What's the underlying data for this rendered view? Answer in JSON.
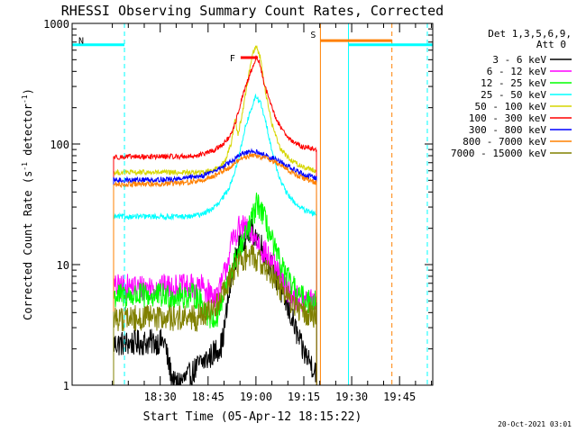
{
  "chart_data": {
    "type": "line",
    "title": "RHESSI Observing Summary Count Rates, Corrected",
    "xlabel": "Start Time (05-Apr-12 18:15:22)",
    "ylabel_main": "Corrected Count Rate (s",
    "ylabel_sup1": "-1",
    "ylabel_mid": " detector",
    "ylabel_sup2": "-1",
    "ylabel_end": ")",
    "footer": "20-Oct-2021 03:01",
    "y_scale": "log",
    "ylim": [
      1,
      1000
    ],
    "y_ticks": [
      {
        "value": 1,
        "label": "1"
      },
      {
        "value": 10,
        "label": "10"
      },
      {
        "value": 100,
        "label": "100"
      },
      {
        "value": 1000,
        "label": "1000"
      }
    ],
    "x_unit": "minutes after 18:15:22",
    "xlim": [
      -13,
      100
    ],
    "x_ticks": [
      {
        "value": 14.6,
        "label": "18:30"
      },
      {
        "value": 29.6,
        "label": "18:45"
      },
      {
        "value": 44.6,
        "label": "19:00"
      },
      {
        "value": 59.6,
        "label": "19:15"
      },
      {
        "value": 74.6,
        "label": "19:30"
      },
      {
        "value": 89.6,
        "label": "19:45"
      }
    ],
    "legend": {
      "placement": "right",
      "header1": "Det 1,3,5,6,9,",
      "header2": "Att 0"
    },
    "data_start": 0,
    "data_end": 63.6,
    "series": [
      {
        "name": "3 - 6 keV",
        "color": "#000000",
        "points": [
          [
            0,
            2.2
          ],
          [
            16,
            2.3
          ],
          [
            17,
            1.6
          ],
          [
            19,
            1
          ],
          [
            24,
            1.2
          ],
          [
            27,
            1.5
          ],
          [
            30,
            1.7
          ],
          [
            34,
            2.2
          ],
          [
            37,
            8
          ],
          [
            39,
            14
          ],
          [
            41,
            17
          ],
          [
            43,
            19
          ],
          [
            45,
            17
          ],
          [
            47,
            13
          ],
          [
            50,
            9
          ],
          [
            53,
            5.5
          ],
          [
            56,
            3.5
          ],
          [
            59,
            2
          ],
          [
            62,
            1.5
          ],
          [
            63.6,
            1.3
          ]
        ]
      },
      {
        "name": "6 - 12 keV",
        "color": "#ff00ff",
        "points": [
          [
            0,
            6.5
          ],
          [
            28,
            6.5
          ],
          [
            31,
            5.5
          ],
          [
            33,
            5.8
          ],
          [
            35,
            9
          ],
          [
            37,
            15
          ],
          [
            39,
            20
          ],
          [
            41,
            20
          ],
          [
            44,
            17
          ],
          [
            47,
            13
          ],
          [
            50,
            10
          ],
          [
            53,
            7
          ],
          [
            56,
            5.5
          ],
          [
            59,
            5
          ],
          [
            63.6,
            5
          ]
        ]
      },
      {
        "name": "12 - 25 keV",
        "color": "#00ff00",
        "points": [
          [
            0,
            5.5
          ],
          [
            26,
            5.5
          ],
          [
            29,
            4
          ],
          [
            32,
            3.5
          ],
          [
            34,
            5
          ],
          [
            37,
            9
          ],
          [
            40,
            14
          ],
          [
            43,
            22
          ],
          [
            45,
            32
          ],
          [
            46,
            30
          ],
          [
            48,
            21
          ],
          [
            51,
            12
          ],
          [
            54,
            8
          ],
          [
            57,
            6
          ],
          [
            60,
            5
          ],
          [
            63.6,
            5
          ]
        ]
      },
      {
        "name": "25 - 50 keV",
        "color": "#00ffff",
        "points": [
          [
            0,
            25
          ],
          [
            24,
            25
          ],
          [
            27,
            26
          ],
          [
            30,
            28
          ],
          [
            33,
            32
          ],
          [
            36,
            42
          ],
          [
            39,
            72
          ],
          [
            41,
            130
          ],
          [
            43,
            190
          ],
          [
            44.6,
            250
          ],
          [
            46,
            220
          ],
          [
            48,
            140
          ],
          [
            50,
            80
          ],
          [
            52,
            52
          ],
          [
            54,
            40
          ],
          [
            57,
            32
          ],
          [
            60,
            28
          ],
          [
            63.6,
            26
          ]
        ]
      },
      {
        "name": "50 - 100 keV",
        "color": "#d6d600",
        "points": [
          [
            0,
            58
          ],
          [
            28,
            58
          ],
          [
            32,
            62
          ],
          [
            35,
            72
          ],
          [
            37,
            105
          ],
          [
            38,
            160
          ],
          [
            39,
            120
          ],
          [
            40.5,
            190
          ],
          [
            42,
            330
          ],
          [
            43.5,
            560
          ],
          [
            44.6,
            650
          ],
          [
            46,
            520
          ],
          [
            47.5,
            280
          ],
          [
            49.5,
            150
          ],
          [
            52,
            95
          ],
          [
            55,
            75
          ],
          [
            59,
            65
          ],
          [
            63.6,
            60
          ]
        ]
      },
      {
        "name": "100 - 300 keV",
        "color": "#ff0000",
        "points": [
          [
            0,
            78
          ],
          [
            24,
            79
          ],
          [
            28,
            82
          ],
          [
            32,
            90
          ],
          [
            35,
            104
          ],
          [
            37,
            120
          ],
          [
            38.5,
            160
          ],
          [
            40,
            230
          ],
          [
            42,
            330
          ],
          [
            43.5,
            430
          ],
          [
            44.6,
            520
          ],
          [
            45.8,
            470
          ],
          [
            47,
            330
          ],
          [
            49,
            220
          ],
          [
            51,
            160
          ],
          [
            53,
            130
          ],
          [
            56,
            105
          ],
          [
            59,
            95
          ],
          [
            63.6,
            90
          ]
        ]
      },
      {
        "name": "300 - 800 keV",
        "color": "#0000ff",
        "points": [
          [
            0,
            50
          ],
          [
            20,
            51
          ],
          [
            28,
            55
          ],
          [
            33,
            62
          ],
          [
            37,
            72
          ],
          [
            40,
            82
          ],
          [
            43,
            86
          ],
          [
            45,
            85
          ],
          [
            48,
            80
          ],
          [
            52,
            72
          ],
          [
            56,
            62
          ],
          [
            60,
            55
          ],
          [
            63.6,
            52
          ]
        ]
      },
      {
        "name": "800 - 7000 keV",
        "color": "#ff8000",
        "points": [
          [
            0,
            46
          ],
          [
            20,
            47
          ],
          [
            28,
            50
          ],
          [
            33,
            57
          ],
          [
            37,
            66
          ],
          [
            40,
            76
          ],
          [
            43,
            80
          ],
          [
            45,
            80
          ],
          [
            48,
            76
          ],
          [
            52,
            68
          ],
          [
            56,
            58
          ],
          [
            60,
            51
          ],
          [
            63.6,
            48
          ]
        ]
      },
      {
        "name": "7000 - 15000 keV",
        "color": "#808000",
        "points": [
          [
            0,
            3.6
          ],
          [
            26,
            3.6
          ],
          [
            30,
            4
          ],
          [
            33,
            5
          ],
          [
            36,
            7
          ],
          [
            38,
            9
          ],
          [
            40,
            11
          ],
          [
            42,
            11.5
          ],
          [
            44,
            11.5
          ],
          [
            47,
            10
          ],
          [
            50,
            8
          ],
          [
            53,
            6
          ],
          [
            56,
            4.8
          ],
          [
            59,
            4
          ],
          [
            63.6,
            3.8
          ]
        ]
      }
    ],
    "annotations": {
      "flare": {
        "label": "F",
        "x_start": 39.8,
        "x_end": 45.2,
        "y": 520,
        "color": "#ff0000"
      },
      "saa": {
        "label": "S",
        "x_start": 64.8,
        "x_end": 87.2,
        "y": 720,
        "color": "#ff8000"
      },
      "night_1": {
        "label": "N",
        "x_start": -13,
        "x_end": 3.4,
        "y": 665,
        "color": "#00ffff"
      },
      "night_2": {
        "label": "",
        "x_start": 73.6,
        "x_end": 100,
        "y": 665,
        "color": "#00ffff"
      },
      "solid_verticals": [
        {
          "x": -13,
          "color": "#00ffff"
        },
        {
          "x": 64.8,
          "color": "#ff8000"
        },
        {
          "x": 73.6,
          "color": "#00ffff"
        }
      ],
      "dashed_verticals": [
        {
          "x": 3.4,
          "color": "#00ffff"
        },
        {
          "x": 87.2,
          "color": "#ff8000"
        },
        {
          "x": 98.3,
          "color": "#00ffff"
        }
      ]
    }
  }
}
